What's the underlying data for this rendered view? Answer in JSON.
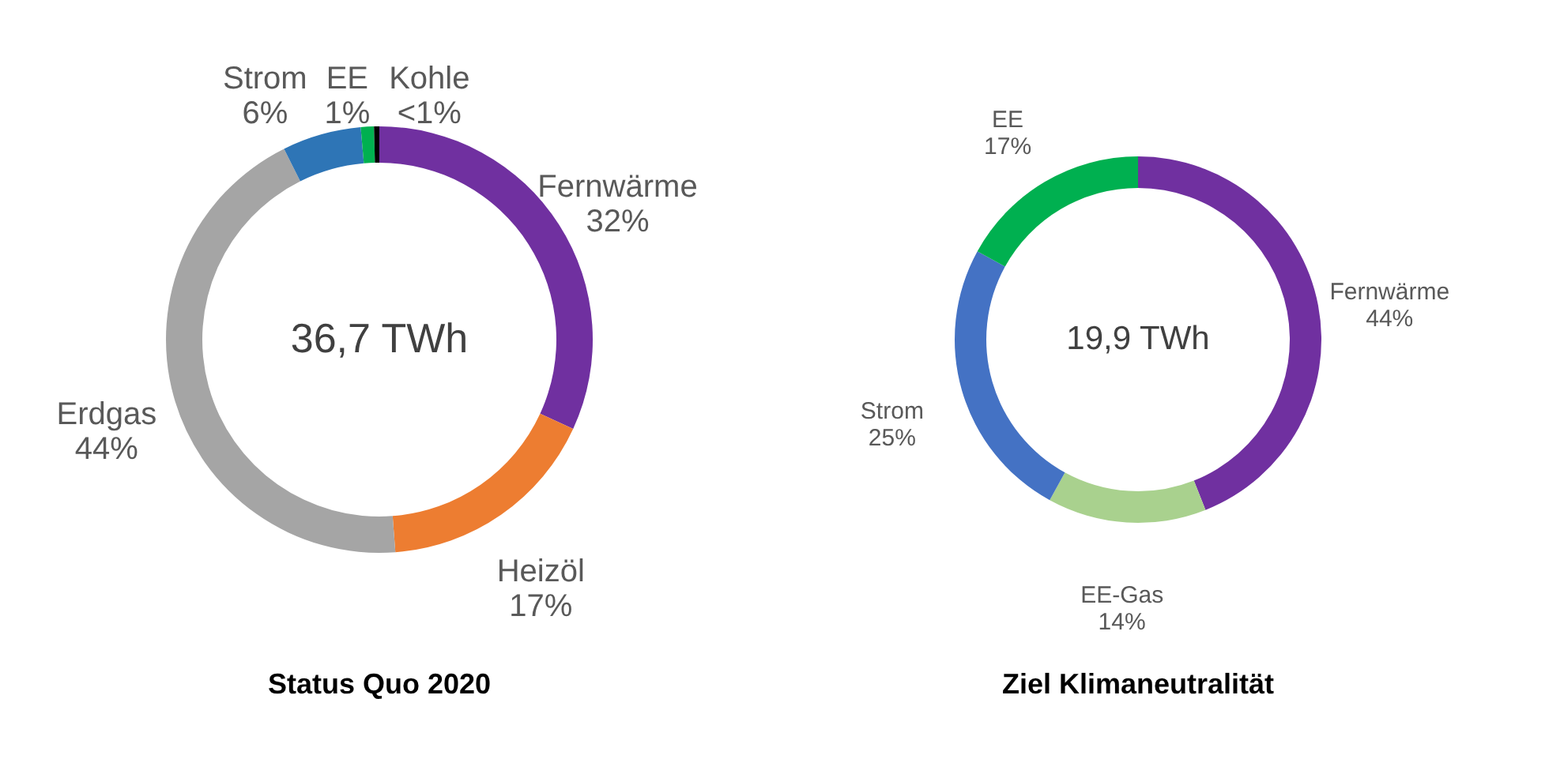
{
  "chart_data": [
    {
      "type": "donut",
      "title": "Status Quo 2020",
      "categories": [
        "Fernwärme",
        "Heizöl",
        "Erdgas",
        "Strom",
        "EE",
        "Kohle"
      ],
      "values": [
        32,
        17,
        44,
        6,
        1,
        0.4
      ],
      "colors": [
        "#7030a0",
        "#ed7d31",
        "#a5a5a5",
        "#2e75b6",
        "#00b050",
        "#000000"
      ],
      "value_labels": [
        "32%",
        "17%",
        "44%",
        "6%",
        "1%",
        "<1%"
      ],
      "annotations": [
        "36,7 TWh"
      ]
    },
    {
      "type": "donut",
      "title": "Ziel Klimaneutralität",
      "categories": [
        "Fernwärme",
        "EE-Gas",
        "Strom",
        "EE"
      ],
      "values": [
        44,
        14,
        25,
        17
      ],
      "colors": [
        "#7030a0",
        "#a9d18e",
        "#4472c4",
        "#00b050"
      ],
      "value_labels": [
        "44%",
        "14%",
        "25%",
        "17%"
      ],
      "annotations": [
        "19,9 TWh"
      ]
    }
  ]
}
